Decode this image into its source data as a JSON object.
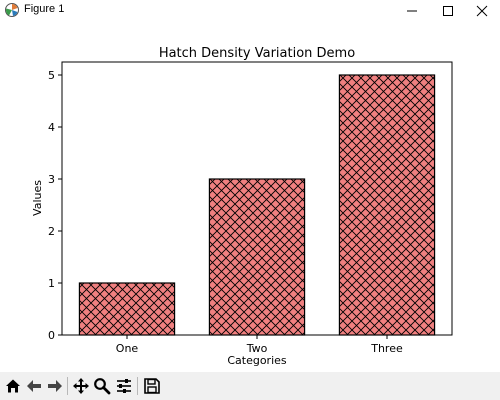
{
  "window": {
    "title": "Figure 1",
    "icons": [
      "matplotlib-app-icon",
      "minimize-icon",
      "maximize-icon",
      "close-icon"
    ]
  },
  "chart_data": {
    "type": "bar",
    "title": "Hatch Density Variation Demo",
    "xlabel": "Categories",
    "ylabel": "Values",
    "categories": [
      "One",
      "Two",
      "Three"
    ],
    "values": [
      1,
      3,
      5
    ],
    "ylim": [
      0,
      5.25
    ],
    "yticks": [
      "0",
      "1",
      "2",
      "3",
      "4",
      "5"
    ],
    "grid": false,
    "bar_color": "#f08080",
    "edge_color": "#000000",
    "hatch": "xxx"
  },
  "toolbar": {
    "icons": [
      "home-icon",
      "back-icon",
      "forward-icon",
      "pan-icon",
      "zoom-icon",
      "configure-subplots-icon",
      "save-icon"
    ]
  }
}
